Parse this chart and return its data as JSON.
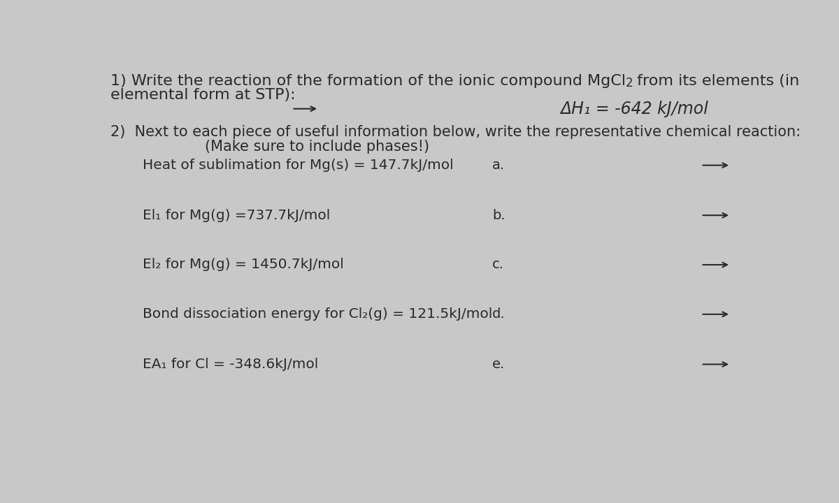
{
  "bg_color": "#c8c8c8",
  "title1_part1": "1) Write the reaction of the formation of the ionic compound MgCl",
  "title1_sub": "2",
  "title1_part2": " from its elements (in",
  "title2": "elemental form at STP):",
  "delta_h": "ΔH₁ = -642 kJ/mol",
  "section2_line1": "2)  Next to each piece of useful information below, write the representative chemical reaction:",
  "section2_line2": "(Make sure to include phases!)",
  "items": [
    "Heat of sublimation for Mg(s) = 147.7kJ/mol",
    "El₁ for Mg(g) =737.7kJ/mol",
    "El₂ for Mg(g) = 1450.7kJ/mol",
    "Bond dissociation energy for Cl₂(g) = 121.5kJ/mol",
    "EA₁ for Cl = -348.6kJ/mol"
  ],
  "labels": [
    "a.",
    "b.",
    "c.",
    "d.",
    "e."
  ],
  "text_color": "#2a2a2a",
  "font_size_title": 16,
  "font_size_body": 15,
  "font_size_items": 14.5,
  "font_size_dh": 17
}
